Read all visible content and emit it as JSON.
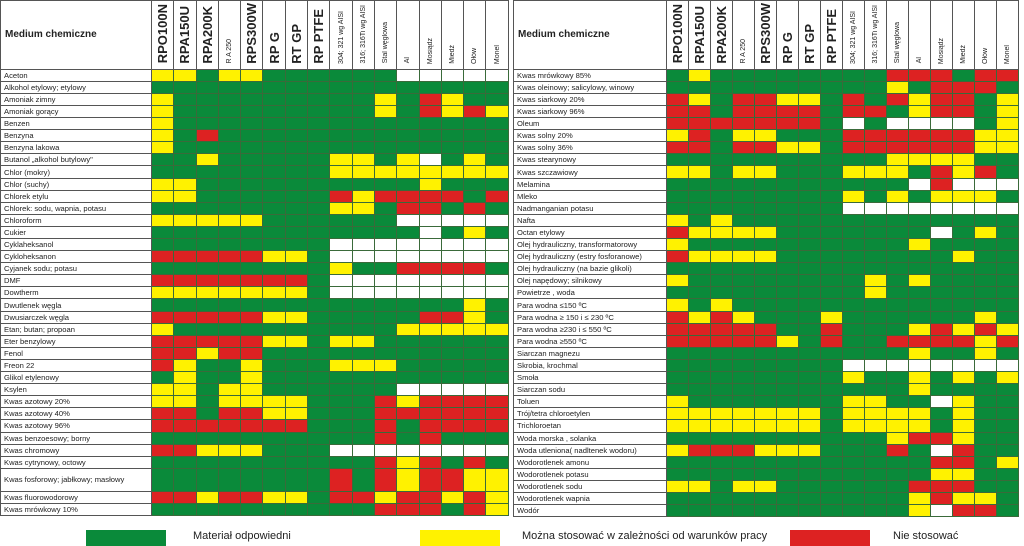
{
  "chart_data": {
    "type": "table",
    "title": "",
    "color_key": {
      "G": "#0a8a3a",
      "Y": "#fff200",
      "R": "#dd2222",
      "W": "#ffffff"
    },
    "legend": [
      {
        "code": "G",
        "label": "Materiał odpowiedni"
      },
      {
        "code": "Y",
        "label": "Można stosować w zależności od warunków pracy"
      },
      {
        "code": "R",
        "label": "Nie stosować"
      }
    ],
    "name_header": "Medium chemiczne",
    "columns": [
      {
        "label": "RPO100N",
        "style": "big"
      },
      {
        "label": "RPA150U",
        "style": "big"
      },
      {
        "label": "RPA200K",
        "style": "big"
      },
      {
        "label": "R A 250",
        "style": "small"
      },
      {
        "label": "RPS300W",
        "style": "big"
      },
      {
        "label": "RP G",
        "style": "big"
      },
      {
        "label": "RT GP",
        "style": "big"
      },
      {
        "label": "RP PTFE",
        "style": "big"
      },
      {
        "label": "304; 321 wg AISI",
        "style": "small"
      },
      {
        "label": "316; 316Ti wg AISI",
        "style": "small"
      },
      {
        "label": "Stal węglowa",
        "style": "small"
      },
      {
        "label": "Al",
        "style": "small"
      },
      {
        "label": "Mosiądz",
        "style": "small"
      },
      {
        "label": "Miedź",
        "style": "small"
      },
      {
        "label": "Ołów",
        "style": "small"
      },
      {
        "label": "Monel",
        "style": "small"
      }
    ],
    "tables": [
      {
        "rows": [
          {
            "name": "Aceton",
            "cells": "YYGYYGGGGGGWWWWW"
          },
          {
            "name": "Alkohol etylowy; etylowy",
            "cells": "GGGGGGGGGGGGGGGG"
          },
          {
            "name": "Amoniak  zimny",
            "cells": "YGGGGGGGGGYGRYGG"
          },
          {
            "name": "Amoniak gorący",
            "cells": "YGGGGGGGGGYGRYRY"
          },
          {
            "name": "Benzen",
            "cells": "YGGGGGGGGGGGGGGG"
          },
          {
            "name": "Benzyna",
            "cells": "YGRGGGGGGGGGGGGG"
          },
          {
            "name": "Benzyna lakowa",
            "cells": "YGGGGGGGGGGGGGGG"
          },
          {
            "name": "Butanol „alkohol butylowy\"",
            "cells": "GGYGGGGGYYGYWGYG"
          },
          {
            "name": "Chlor (mokry)",
            "cells": "GGGGGGGGYYYYYYYY"
          },
          {
            "name": "Chlor (suchy)",
            "cells": "YYGGGGGGGGGGYGGG"
          },
          {
            "name": "Chlorek etylu",
            "cells": "YYGGGGGGRYRRRRGR"
          },
          {
            "name": "Chlorek: sodu, wapnia, potasu",
            "cells": "GGGGGGGGYYGRRGRG"
          },
          {
            "name": "Chloroform",
            "cells": "YYYYYGGGGGGWWWWW"
          },
          {
            "name": "Cukier",
            "cells": "GGGGGGGGGGGGWGYG"
          },
          {
            "name": "Cyklaheksanol",
            "cells": "GGGGGGGGWWWWWWWW"
          },
          {
            "name": "Cykloheksanon",
            "cells": "RRRRRYYGWWWWWWWW"
          },
          {
            "name": "Cyjanek sodu; potasu",
            "cells": "GGGGGGGGYGGRRRRG"
          },
          {
            "name": "DMF",
            "cells": "RRRRRRRGWWWWWWWW"
          },
          {
            "name": "Dowtherm",
            "cells": "YYYYYYYGWWWWWWWW"
          },
          {
            "name": "Dwutlenek węgla",
            "cells": "GGGGGGGGGGGGGGYG"
          },
          {
            "name": "Dwusiarczek węgla",
            "cells": "RRRRRYYGGGGGRRYG"
          },
          {
            "name": "Etan; butan;  propoan",
            "cells": "YGGGGGGGGGGYYYYY"
          },
          {
            "name": "Eter benzylowy",
            "cells": "RRRRRYYGYYGGGGGG"
          },
          {
            "name": "Fenol",
            "cells": "RRYRRGGGGGGGGGGG"
          },
          {
            "name": "Freon 22",
            "cells": "RYGGYGGGYYYGGGGG"
          },
          {
            "name": "Glikol etylenowy",
            "cells": "GYGGYGGGGGGGGGGG"
          },
          {
            "name": "Ksylen",
            "cells": "YYGYYGGGGGGWWWWW"
          },
          {
            "name": "Kwas azotowy  20%",
            "cells": "YYGYYYYGGGRYRRRR"
          },
          {
            "name": "Kwas azotowy  40%",
            "cells": "RRGRRYYGGGRRRRRR"
          },
          {
            "name": "Kwas azotowy 96%",
            "cells": "RRRRRRRGGGRGRRRR"
          },
          {
            "name": "Kwas benzoesowy; borny",
            "cells": "GGGGGGGGGGRGRGGG"
          },
          {
            "name": "Kwas chromowy",
            "cells": "RRYYYGGGWWWWWWWW"
          },
          {
            "name": "Kwas cytrynowy, octowy",
            "cells": "GGGGGGGGGGRYRGRG"
          },
          {
            "name": "Kwas fosforowy; jabłkowy; masłowy",
            "cells": "GGGGGGGGRGRYRRYY",
            "two_line": true
          },
          {
            "name": "Kwas fluorowodorowy",
            "cells": "RRYRRYYGRRYRRYRY"
          },
          {
            "name": "Kwas mrówkowy 10%",
            "cells": "GGGGGGGGGGRRRGRY"
          }
        ]
      },
      {
        "rows": [
          {
            "name": "Kwas mrówkowy 85%",
            "cells": "GYGGGGGGGGRRRGRR"
          },
          {
            "name": "Kwas oleinowy; salicylowy, winowy",
            "cells": "GGGGGGGGGGYGRRRG"
          },
          {
            "name": "Kwas siarkowy 20%",
            "cells": "RYGRRYYGRGRYRRGY"
          },
          {
            "name": "Kwas siarkowy 96%",
            "cells": "RRGRRRRGRRGYRRGY"
          },
          {
            "name": "Oleum",
            "cells": "RRRRRRRGWGWWWWGY"
          },
          {
            "name": "Kwas solny  20%",
            "cells": "YRGYYGGGRRRRRRYY"
          },
          {
            "name": "Kwas solny 36%",
            "cells": "RRGRRYYGRRRRRRYY"
          },
          {
            "name": "Kwas stearynowy",
            "cells": "GGGGGGGGGGYYYYGG"
          },
          {
            "name": "Kwas szczawiowy",
            "cells": "YYGYYGGGYYYGRYRG"
          },
          {
            "name": "Melamina",
            "cells": "GGGGGGGGGGGWRWWW"
          },
          {
            "name": "Mleko",
            "cells": "GGGGGGGGYGYGYYYG"
          },
          {
            "name": "Nadmanganian potasu",
            "cells": "GGGGGGGGWWWWWWWW"
          },
          {
            "name": "Nafta",
            "cells": "YGYGGGGGGGGGGGGG"
          },
          {
            "name": "Octan etylowy",
            "cells": "RYYYYGGGGGGGWGYG"
          },
          {
            "name": "Olej hydrauliczny, transformatorowy",
            "cells": "YGGGGGGGGGGYGGGG"
          },
          {
            "name": "Olej hydrauliczny (estry fosforanowe)",
            "cells": "RYYYYGGGGGGGGYGG"
          },
          {
            "name": "Olej hydrauliczny (na bazie glikoli)",
            "cells": "GGGGGGGGGGGGGGGG"
          },
          {
            "name": "Olej napędowy; silnikowy",
            "cells": "YGGGGGGGGYGYGGGG"
          },
          {
            "name": "Powietrze , woda",
            "cells": "GGGGGGGGGYGGGGGG"
          },
          {
            "name": "Para wodna ≤150 ºC",
            "cells": "YGYGGGGGGGGGGGGG"
          },
          {
            "name": "Para wodna  ≥ 150 i ≤ 230 ºC",
            "cells": "RYRYGGGYGGGGGGYG"
          },
          {
            "name": "Para wodna  ≥230 i ≤ 550 ºC",
            "cells": "RRRRRGGRGGGYRYRY"
          },
          {
            "name": "Para wodna ≥550 ºC",
            "cells": "RRRRRYGRGGRRRRYR"
          },
          {
            "name": "Siarczan  magnezu",
            "cells": "GGGGGGGGGGGYGGYG"
          },
          {
            "name": "Skrobia, krochmal",
            "cells": "GGGGGGGGWWWWWWWW"
          },
          {
            "name": "Smoła",
            "cells": "GGGGGGGGYGGYGYGY"
          },
          {
            "name": "Siarczan sodu",
            "cells": "GGGGGGGGGGGYGGGG"
          },
          {
            "name": "Toluen",
            "cells": "YGGGGGGGYYGGWYGG"
          },
          {
            "name": "Trój/tetra chloroetylen",
            "cells": "YYYYYYYGYYYYGYGG"
          },
          {
            "name": "Trichloroetan",
            "cells": "YYYYYYYGYYYYGYGG"
          },
          {
            "name": "Woda morska , solanka",
            "cells": "GGGGGGGGGGYRRYGG"
          },
          {
            "name": "Woda utleniona( nadltenek wodoru)",
            "cells": "YRRRYYYGGGRGWRGG"
          },
          {
            "name": "Wodorotlenek amonu",
            "cells": "GGGGGGGGGGGGRRGY"
          },
          {
            "name": "Wodorotlenek potasu",
            "cells": "GGGGGGGGGGGGYYGG"
          },
          {
            "name": "Wodorotlenek sodu",
            "cells": "YYGYYGGGGGGRRRGG"
          },
          {
            "name": "Wodorotlenek wapnia",
            "cells": "GGGGGGGGGGGYRYYG"
          },
          {
            "name": "Wodór",
            "cells": "GGGGGGGGGGGYWRRG"
          }
        ]
      }
    ]
  }
}
